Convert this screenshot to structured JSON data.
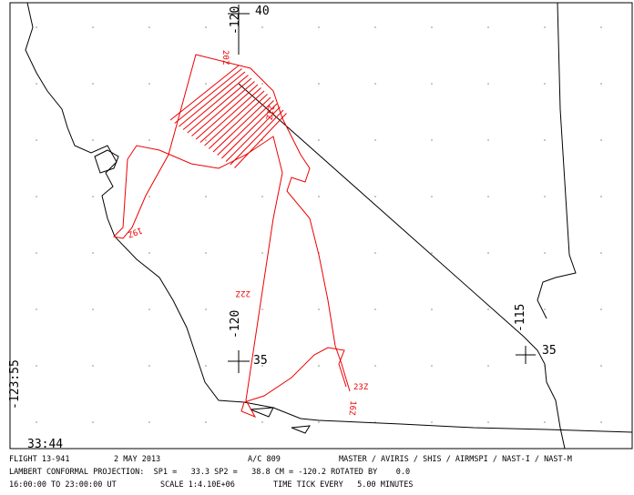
{
  "map": {
    "labels": {
      "lat_top": "40",
      "lon_top": "-120",
      "lat_mid": "35",
      "lon_mid": "-120",
      "lon_right": "-115",
      "lat_right": "35",
      "lon_corner": "-123:55",
      "lat_corner": "33:44"
    },
    "time_labels": [
      "20Z",
      "21Z",
      "19Z",
      "22Z",
      "23Z",
      "16Z"
    ]
  },
  "footer": {
    "line1": [
      "FLIGHT 13-941",
      "2 MAY 2013",
      "A/C 809",
      "MASTER / AVIRIS / SHIS / AIRMSPI / NAST-I / NAST-M"
    ],
    "line2": "LAMBERT CONFORMAL PROJECTION:  SP1 =   33.3 SP2 =   38.8 CM = -120.2 ROTATED BY    0.0",
    "line3": [
      "16:00:00 TO 23:00:00 UT",
      "SCALE 1:4.10E+06",
      "TIME TICK EVERY   5.00 MINUTES"
    ]
  }
}
